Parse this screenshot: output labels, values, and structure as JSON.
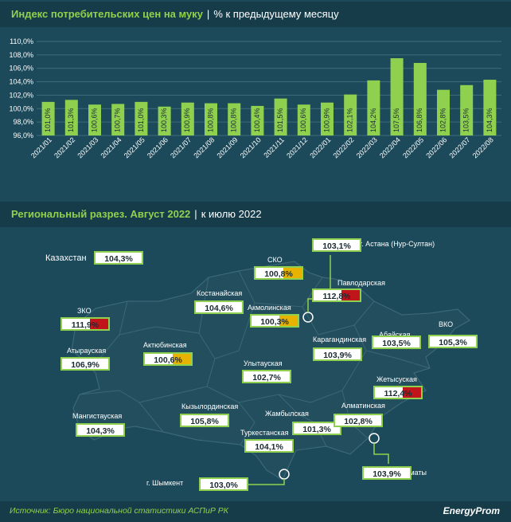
{
  "header1": {
    "title": "Индекс потребительских цен на муку",
    "subtitle": "% к предыдущему месяцу"
  },
  "header2": {
    "title": "Региональный разрез. Август 2022",
    "subtitle": "к июлю 2022"
  },
  "chart_data": {
    "type": "bar",
    "categories": [
      "2021/01",
      "2021/02",
      "2021/03",
      "2021/04",
      "2021/05",
      "2021/06",
      "2021/07",
      "2021/08",
      "2021/09",
      "2021/10",
      "2021/11",
      "2021/12",
      "2022/01",
      "2022/02",
      "2022/03",
      "2022/04",
      "2022/05",
      "2022/06",
      "2022/07",
      "2022/08"
    ],
    "values": [
      101.0,
      101.3,
      100.6,
      100.7,
      101.0,
      100.3,
      100.9,
      100.8,
      100.8,
      100.4,
      101.5,
      100.6,
      100.9,
      102.1,
      104.2,
      107.5,
      106.8,
      102.8,
      103.5,
      104.3
    ],
    "value_labels": [
      "101,0%",
      "101,3%",
      "100,6%",
      "100,7%",
      "101,0%",
      "100,3%",
      "100,9%",
      "100,8%",
      "100,8%",
      "100,4%",
      "101,5%",
      "100,6%",
      "100,9%",
      "102,1%",
      "104,2%",
      "107,5%",
      "106,8%",
      "102,8%",
      "103,5%",
      "104,3%"
    ],
    "ylim": [
      96,
      110
    ],
    "yticks": [
      "96,0%",
      "98,0%",
      "100,0%",
      "102,0%",
      "104,0%",
      "106,0%",
      "108,0%",
      "110,0%"
    ],
    "grid": true,
    "bar_color": "#8fd14f"
  },
  "map": {
    "kazakhstan": {
      "name": "Казахстан",
      "value": "104,3%"
    },
    "regions": [
      {
        "name": "СКО",
        "value": "100,8%",
        "color": "yellow"
      },
      {
        "name": "г. Астана (Нур-Султан)",
        "value": "103,1%",
        "color": "green"
      },
      {
        "name": "Павлодарская",
        "value": "112,8%",
        "color": "red"
      },
      {
        "name": "Костанайская",
        "value": "104,6%",
        "color": "green"
      },
      {
        "name": "Акмолинская",
        "value": "100,3%",
        "color": "yellow"
      },
      {
        "name": "ЗКО",
        "value": "111,9%",
        "color": "red"
      },
      {
        "name": "Атырауская",
        "value": "106,9%",
        "color": "green"
      },
      {
        "name": "Актюбинская",
        "value": "100,6%",
        "color": "yellow"
      },
      {
        "name": "Абайская",
        "value": "103,5%",
        "color": "green"
      },
      {
        "name": "ВКО",
        "value": "105,3%",
        "color": "green"
      },
      {
        "name": "Карагандинская",
        "value": "103,9%",
        "color": "green"
      },
      {
        "name": "Улытауская",
        "value": "102,7%",
        "color": "green"
      },
      {
        "name": "Жетысуская",
        "value": "112,4%",
        "color": "red"
      },
      {
        "name": "Мангистауская",
        "value": "104,3%",
        "color": "green"
      },
      {
        "name": "Кызылординская",
        "value": "105,8%",
        "color": "green"
      },
      {
        "name": "Жамбылская",
        "value": "101,3%",
        "color": "green"
      },
      {
        "name": "Алматинская",
        "value": "102,8%",
        "color": "green"
      },
      {
        "name": "Туркестанская",
        "value": "104,1%",
        "color": "green"
      },
      {
        "name": "г. Шымкент",
        "value": "103,0%",
        "color": "green"
      },
      {
        "name": "г. Алматы",
        "value": "103,9%",
        "color": "green"
      }
    ]
  },
  "footer": {
    "source": "Источник: Бюро национальной статистики АСПиР РК",
    "brand": "EnergyProm"
  },
  "colors": {
    "background": "#1c4a5a",
    "header": "#163c4a",
    "accent": "#8fd14f",
    "map_fill": "#234e5d",
    "red": "#c0161b",
    "yellow": "#e8b300"
  }
}
